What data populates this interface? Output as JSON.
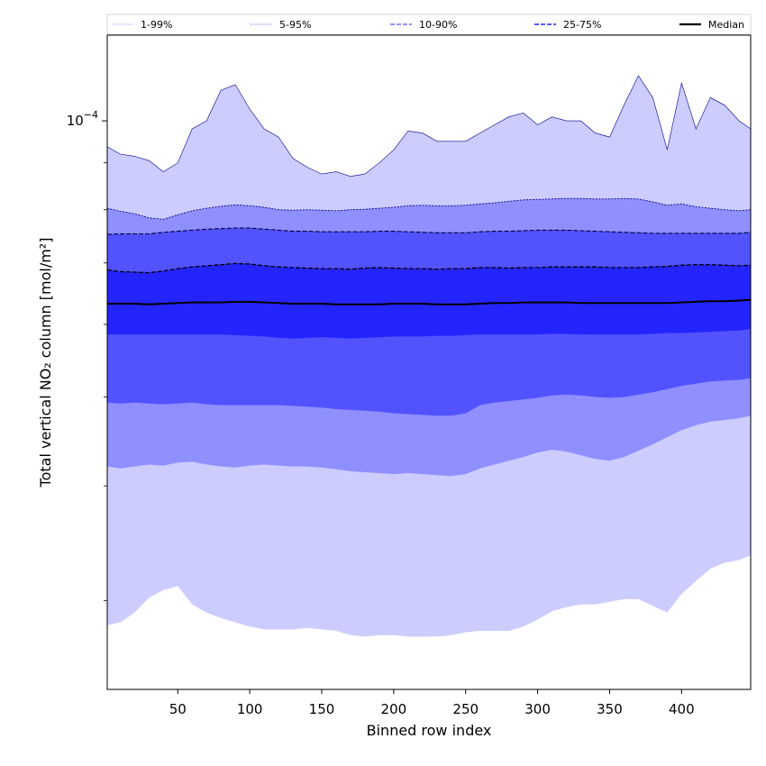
{
  "chart_data": {
    "type": "area",
    "xlabel": "Binned row index",
    "ylabel": "Total vertical NO₂ column [mol/m²]",
    "xlim": [
      1,
      448
    ],
    "xticks": [
      50,
      100,
      150,
      200,
      250,
      300,
      350,
      400
    ],
    "yscale": "log",
    "ylim": [
      2.4e-05,
      0.000124
    ],
    "ytick_label": {
      "base": "10",
      "exponent": "−4",
      "value": 0.0001
    },
    "grid": false,
    "legend_position": "top",
    "legend": [
      "1-99%",
      "5-95%",
      "10-90%",
      "25-75%",
      "Median"
    ],
    "colors": {
      "p1_99": "#ccccff",
      "p5_95": "#8f8fff",
      "p10_90": "#5252ff",
      "p25_75": "#2424ff",
      "median": "#000000",
      "outline": "#00008b"
    },
    "x": [
      1,
      10,
      20,
      30,
      40,
      50,
      60,
      70,
      80,
      90,
      100,
      110,
      120,
      130,
      140,
      150,
      160,
      170,
      180,
      190,
      200,
      210,
      220,
      230,
      240,
      250,
      260,
      270,
      280,
      290,
      300,
      310,
      320,
      330,
      340,
      350,
      360,
      370,
      380,
      390,
      400,
      410,
      420,
      430,
      440,
      448
    ],
    "series": [
      {
        "name": "1-99%",
        "lower": [
          2.82e-05,
          2.84e-05,
          2.91e-05,
          3.02e-05,
          3.08e-05,
          3.11e-05,
          2.97e-05,
          2.91e-05,
          2.87e-05,
          2.84e-05,
          2.81e-05,
          2.79e-05,
          2.79e-05,
          2.79e-05,
          2.8e-05,
          2.79e-05,
          2.78e-05,
          2.75e-05,
          2.74e-05,
          2.75e-05,
          2.75e-05,
          2.74e-05,
          2.74e-05,
          2.74e-05,
          2.75e-05,
          2.77e-05,
          2.78e-05,
          2.78e-05,
          2.78e-05,
          2.81e-05,
          2.86e-05,
          2.92e-05,
          2.95e-05,
          2.97e-05,
          2.97e-05,
          2.99e-05,
          3.01e-05,
          3.01e-05,
          2.96e-05,
          2.91e-05,
          3.05e-05,
          3.15e-05,
          3.25e-05,
          3.3e-05,
          3.32e-05,
          3.36e-05
        ],
        "upper": [
          9.37e-05,
          9.2e-05,
          9.15e-05,
          9.05e-05,
          8.8e-05,
          9e-05,
          9.8e-05,
          0.0001,
          0.000108,
          0.0001095,
          0.000103,
          9.8e-05,
          9.6e-05,
          9.1e-05,
          8.9e-05,
          8.75e-05,
          8.8e-05,
          8.7e-05,
          8.75e-05,
          9e-05,
          9.3e-05,
          9.75e-05,
          9.7e-05,
          9.5e-05,
          9.5e-05,
          9.5e-05,
          9.7e-05,
          9.9e-05,
          0.000101,
          0.000102,
          9.9e-05,
          0.000101,
          0.0001,
          0.0001,
          9.7e-05,
          9.6e-05,
          0.000104,
          0.000112,
          0.000106,
          9.3e-05,
          0.00011,
          9.8e-05,
          0.000106,
          0.000104,
          0.0001,
          9.8e-05
        ]
      },
      {
        "name": "5-95%",
        "lower": [
          4.2e-05,
          4.18e-05,
          4.2e-05,
          4.22e-05,
          4.21e-05,
          4.24e-05,
          4.25e-05,
          4.22e-05,
          4.2e-05,
          4.19e-05,
          4.21e-05,
          4.22e-05,
          4.21e-05,
          4.2e-05,
          4.2e-05,
          4.19e-05,
          4.17e-05,
          4.15e-05,
          4.14e-05,
          4.13e-05,
          4.12e-05,
          4.13e-05,
          4.12e-05,
          4.11e-05,
          4.1e-05,
          4.12e-05,
          4.18e-05,
          4.22e-05,
          4.26e-05,
          4.3e-05,
          4.35e-05,
          4.38e-05,
          4.36e-05,
          4.32e-05,
          4.28e-05,
          4.26e-05,
          4.3e-05,
          4.37e-05,
          4.44e-05,
          4.52e-05,
          4.6e-05,
          4.66e-05,
          4.7e-05,
          4.72e-05,
          4.74e-05,
          4.77e-05
        ],
        "upper": [
          8.03e-05,
          7.97e-05,
          7.92e-05,
          7.84e-05,
          7.81e-05,
          7.9e-05,
          7.98e-05,
          8.03e-05,
          8.07e-05,
          8.1e-05,
          8.08e-05,
          8.05e-05,
          8e-05,
          7.99e-05,
          8e-05,
          7.99e-05,
          7.98e-05,
          8e-05,
          8.01e-05,
          8.03e-05,
          8.05e-05,
          8.08e-05,
          8.09e-05,
          8.08e-05,
          8.08e-05,
          8.09e-05,
          8.12e-05,
          8.14e-05,
          8.17e-05,
          8.2e-05,
          8.21e-05,
          8.22e-05,
          8.23e-05,
          8.23e-05,
          8.22e-05,
          8.22e-05,
          8.23e-05,
          8.22e-05,
          8.16e-05,
          8.09e-05,
          8.12e-05,
          8.06e-05,
          8.03e-05,
          8e-05,
          7.98e-05,
          8e-05
        ]
      },
      {
        "name": "10-90%",
        "lower": [
          4.93e-05,
          4.92e-05,
          4.93e-05,
          4.92e-05,
          4.91e-05,
          4.92e-05,
          4.93e-05,
          4.91e-05,
          4.9e-05,
          4.9e-05,
          4.9e-05,
          4.9e-05,
          4.9e-05,
          4.89e-05,
          4.88e-05,
          4.87e-05,
          4.85e-05,
          4.84e-05,
          4.83e-05,
          4.82e-05,
          4.8e-05,
          4.79e-05,
          4.78e-05,
          4.77e-05,
          4.77e-05,
          4.8e-05,
          4.9e-05,
          4.93e-05,
          4.95e-05,
          4.97e-05,
          4.99e-05,
          5.02e-05,
          5.03e-05,
          5.02e-05,
          5e-05,
          4.99e-05,
          5e-05,
          5.03e-05,
          5.06e-05,
          5.1e-05,
          5.14e-05,
          5.17e-05,
          5.2e-05,
          5.21e-05,
          5.22e-05,
          5.24e-05
        ],
        "upper": [
          7.52e-05,
          7.53e-05,
          7.53e-05,
          7.53e-05,
          7.56e-05,
          7.58e-05,
          7.6e-05,
          7.62e-05,
          7.63e-05,
          7.64e-05,
          7.64e-05,
          7.62e-05,
          7.6e-05,
          7.58e-05,
          7.58e-05,
          7.57e-05,
          7.57e-05,
          7.57e-05,
          7.57e-05,
          7.58e-05,
          7.58e-05,
          7.57e-05,
          7.56e-05,
          7.55e-05,
          7.55e-05,
          7.55e-05,
          7.57e-05,
          7.58e-05,
          7.58e-05,
          7.59e-05,
          7.6e-05,
          7.6e-05,
          7.6e-05,
          7.59e-05,
          7.58e-05,
          7.57e-05,
          7.56e-05,
          7.55e-05,
          7.54e-05,
          7.54e-05,
          7.54e-05,
          7.54e-05,
          7.54e-05,
          7.54e-05,
          7.54e-05,
          7.56e-05
        ]
      },
      {
        "name": "25-75%",
        "lower": [
          5.85e-05,
          5.85e-05,
          5.85e-05,
          5.85e-05,
          5.85e-05,
          5.85e-05,
          5.85e-05,
          5.85e-05,
          5.85e-05,
          5.84e-05,
          5.83e-05,
          5.82e-05,
          5.8e-05,
          5.79e-05,
          5.8e-05,
          5.81e-05,
          5.8e-05,
          5.79e-05,
          5.8e-05,
          5.81e-05,
          5.82e-05,
          5.82e-05,
          5.82e-05,
          5.83e-05,
          5.83e-05,
          5.84e-05,
          5.85e-05,
          5.85e-05,
          5.85e-05,
          5.85e-05,
          5.85e-05,
          5.86e-05,
          5.86e-05,
          5.85e-05,
          5.85e-05,
          5.85e-05,
          5.85e-05,
          5.85e-05,
          5.86e-05,
          5.87e-05,
          5.87e-05,
          5.88e-05,
          5.89e-05,
          5.9e-05,
          5.91e-05,
          5.93e-05
        ],
        "upper": [
          6.88e-05,
          6.85e-05,
          6.84e-05,
          6.83e-05,
          6.86e-05,
          6.9e-05,
          6.93e-05,
          6.95e-05,
          6.97e-05,
          6.99e-05,
          6.98e-05,
          6.95e-05,
          6.93e-05,
          6.92e-05,
          6.91e-05,
          6.9e-05,
          6.9e-05,
          6.89e-05,
          6.91e-05,
          6.92e-05,
          6.91e-05,
          6.9e-05,
          6.9e-05,
          6.89e-05,
          6.9e-05,
          6.9e-05,
          6.92e-05,
          6.92e-05,
          6.91e-05,
          6.92e-05,
          6.92e-05,
          6.93e-05,
          6.93e-05,
          6.93e-05,
          6.93e-05,
          6.92e-05,
          6.92e-05,
          6.92e-05,
          6.93e-05,
          6.94e-05,
          6.96e-05,
          6.97e-05,
          6.97e-05,
          6.96e-05,
          6.95e-05,
          6.96e-05
        ]
      },
      {
        "name": "Median",
        "values": [
          6.32e-05,
          6.32e-05,
          6.32e-05,
          6.31e-05,
          6.32e-05,
          6.33e-05,
          6.34e-05,
          6.34e-05,
          6.34e-05,
          6.35e-05,
          6.35e-05,
          6.34e-05,
          6.33e-05,
          6.32e-05,
          6.32e-05,
          6.32e-05,
          6.31e-05,
          6.31e-05,
          6.31e-05,
          6.31e-05,
          6.32e-05,
          6.32e-05,
          6.32e-05,
          6.31e-05,
          6.31e-05,
          6.31e-05,
          6.32e-05,
          6.33e-05,
          6.33e-05,
          6.34e-05,
          6.34e-05,
          6.34e-05,
          6.34e-05,
          6.33e-05,
          6.33e-05,
          6.33e-05,
          6.33e-05,
          6.33e-05,
          6.33e-05,
          6.33e-05,
          6.34e-05,
          6.35e-05,
          6.36e-05,
          6.36e-05,
          6.37e-05,
          6.38e-05
        ]
      }
    ]
  }
}
